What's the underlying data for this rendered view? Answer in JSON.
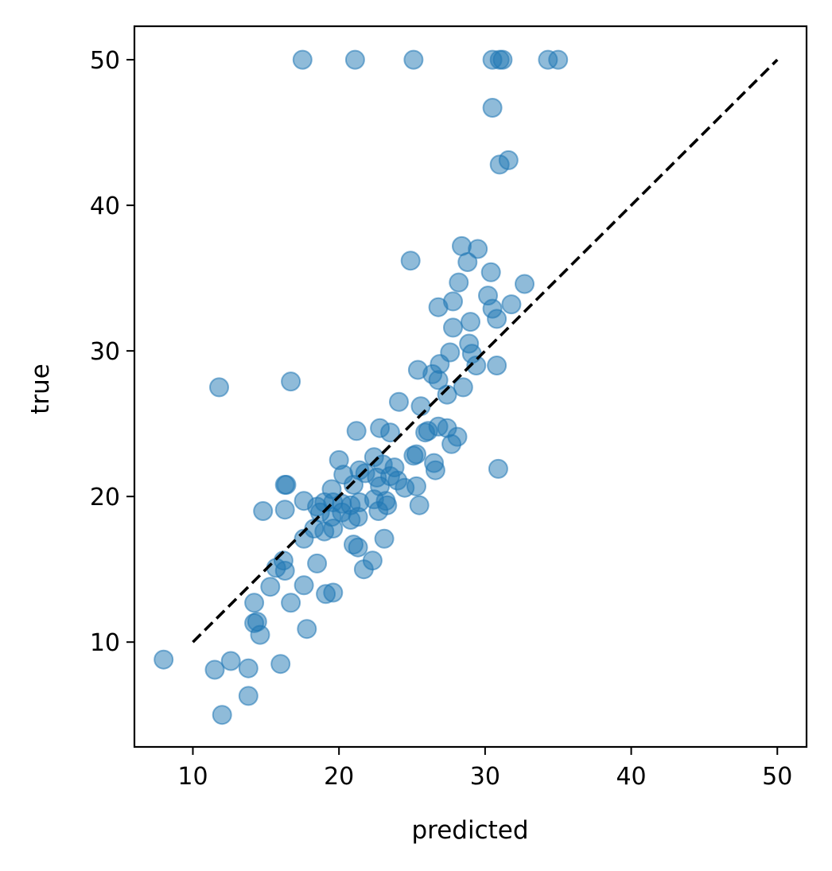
{
  "chart_data": {
    "type": "scatter",
    "xlabel": "predicted",
    "ylabel": "true",
    "xlim": [
      6,
      52
    ],
    "ylim": [
      2.8,
      52.3
    ],
    "xticks": [
      10,
      20,
      30,
      40,
      50
    ],
    "yticks": [
      10,
      20,
      30,
      40,
      50
    ],
    "grid": false,
    "point_color": "#1f77b4",
    "point_opacity": 0.5,
    "reference_line": {
      "style": "dashed",
      "color": "#000000",
      "x": [
        10,
        50
      ],
      "y": [
        10,
        50
      ]
    },
    "points": [
      [
        17.5,
        50.0
      ],
      [
        21.1,
        50.0
      ],
      [
        25.1,
        50.0
      ],
      [
        30.5,
        50.0
      ],
      [
        31.0,
        50.0
      ],
      [
        31.2,
        50.0
      ],
      [
        34.3,
        50.0
      ],
      [
        35.0,
        50.0
      ],
      [
        30.5,
        46.7
      ],
      [
        31.0,
        42.8
      ],
      [
        31.6,
        43.1
      ],
      [
        28.4,
        37.2
      ],
      [
        29.5,
        37.0
      ],
      [
        24.9,
        36.2
      ],
      [
        28.8,
        36.1
      ],
      [
        30.4,
        35.4
      ],
      [
        28.2,
        34.7
      ],
      [
        32.7,
        34.6
      ],
      [
        30.2,
        33.8
      ],
      [
        27.8,
        33.4
      ],
      [
        26.8,
        33.0
      ],
      [
        30.5,
        32.9
      ],
      [
        31.8,
        33.2
      ],
      [
        30.8,
        32.2
      ],
      [
        29.0,
        32.0
      ],
      [
        27.8,
        31.6
      ],
      [
        28.9,
        30.5
      ],
      [
        27.6,
        29.9
      ],
      [
        29.1,
        29.8
      ],
      [
        30.8,
        29.0
      ],
      [
        29.4,
        29.0
      ],
      [
        26.9,
        29.1
      ],
      [
        25.4,
        28.7
      ],
      [
        26.4,
        28.4
      ],
      [
        26.8,
        28.0
      ],
      [
        11.8,
        27.5
      ],
      [
        16.7,
        27.9
      ],
      [
        28.5,
        27.5
      ],
      [
        27.4,
        27.0
      ],
      [
        24.1,
        26.5
      ],
      [
        25.6,
        26.2
      ],
      [
        21.2,
        24.5
      ],
      [
        22.8,
        24.7
      ],
      [
        23.5,
        24.4
      ],
      [
        25.9,
        24.4
      ],
      [
        26.1,
        24.5
      ],
      [
        26.8,
        24.8
      ],
      [
        27.4,
        24.7
      ],
      [
        28.1,
        24.1
      ],
      [
        27.7,
        23.6
      ],
      [
        25.1,
        22.8
      ],
      [
        25.3,
        22.9
      ],
      [
        26.5,
        22.3
      ],
      [
        26.6,
        21.8
      ],
      [
        30.9,
        21.9
      ],
      [
        20.0,
        22.5
      ],
      [
        22.4,
        22.7
      ],
      [
        23.0,
        22.2
      ],
      [
        23.8,
        22.0
      ],
      [
        21.4,
        21.8
      ],
      [
        20.3,
        21.5
      ],
      [
        21.8,
        21.6
      ],
      [
        22.6,
        21.3
      ],
      [
        23.5,
        21.4
      ],
      [
        24.0,
        21.1
      ],
      [
        24.5,
        20.6
      ],
      [
        25.3,
        20.7
      ],
      [
        19.5,
        20.5
      ],
      [
        21.0,
        20.8
      ],
      [
        22.8,
        20.7
      ],
      [
        16.4,
        20.8
      ],
      [
        16.3,
        20.8
      ],
      [
        14.8,
        19.0
      ],
      [
        16.3,
        19.1
      ],
      [
        17.6,
        19.7
      ],
      [
        18.5,
        19.3
      ],
      [
        19.0,
        19.6
      ],
      [
        19.6,
        19.6
      ],
      [
        20.2,
        19.5
      ],
      [
        20.8,
        19.4
      ],
      [
        21.4,
        19.6
      ],
      [
        22.4,
        19.8
      ],
      [
        23.2,
        19.7
      ],
      [
        22.7,
        19.0
      ],
      [
        23.3,
        19.4
      ],
      [
        25.5,
        19.4
      ],
      [
        18.7,
        18.9
      ],
      [
        19.5,
        18.6
      ],
      [
        20.2,
        18.9
      ],
      [
        20.8,
        18.4
      ],
      [
        21.3,
        18.6
      ],
      [
        18.3,
        17.8
      ],
      [
        19.0,
        17.6
      ],
      [
        19.6,
        17.8
      ],
      [
        17.6,
        17.1
      ],
      [
        23.1,
        17.1
      ],
      [
        21.0,
        16.7
      ],
      [
        21.3,
        16.5
      ],
      [
        15.7,
        15.1
      ],
      [
        16.2,
        15.6
      ],
      [
        16.3,
        14.9
      ],
      [
        18.5,
        15.4
      ],
      [
        21.7,
        15.0
      ],
      [
        22.3,
        15.6
      ],
      [
        15.3,
        13.8
      ],
      [
        17.6,
        13.9
      ],
      [
        19.1,
        13.3
      ],
      [
        19.6,
        13.4
      ],
      [
        16.7,
        12.7
      ],
      [
        14.2,
        12.7
      ],
      [
        14.2,
        11.3
      ],
      [
        14.4,
        11.4
      ],
      [
        14.6,
        10.5
      ],
      [
        17.8,
        10.9
      ],
      [
        8.0,
        8.8
      ],
      [
        11.5,
        8.1
      ],
      [
        12.6,
        8.7
      ],
      [
        13.8,
        8.2
      ],
      [
        16.0,
        8.5
      ],
      [
        13.8,
        6.3
      ],
      [
        12.0,
        5.0
      ]
    ]
  }
}
